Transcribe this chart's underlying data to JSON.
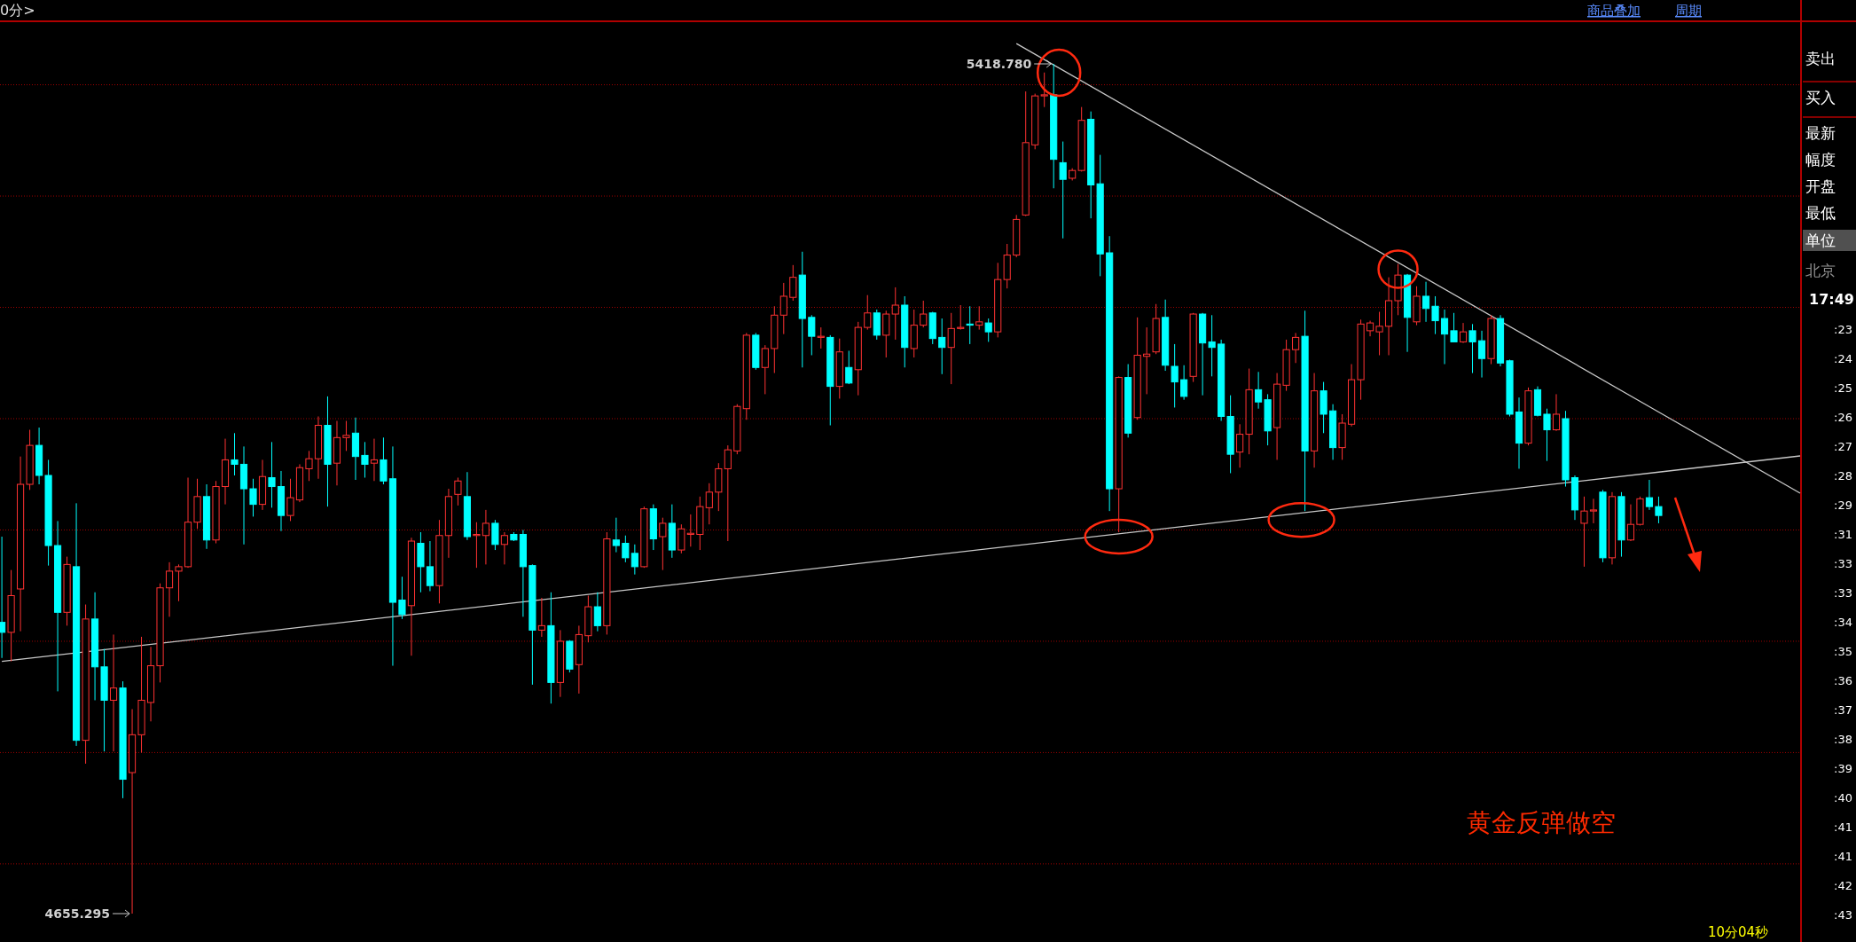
{
  "chart_data": {
    "type": "candlestick",
    "categories": [
      null,
      null,
      null,
      null,
      null,
      null,
      null,
      null,
      null,
      null,
      null,
      null,
      null,
      null,
      null,
      null,
      null,
      null,
      null,
      null,
      null,
      null,
      null,
      null,
      null,
      null,
      null,
      null,
      null,
      null,
      null,
      null,
      null,
      null,
      null,
      null,
      null,
      null,
      null,
      null,
      null,
      null,
      null,
      null,
      null,
      null,
      null,
      null,
      null,
      null,
      null,
      null,
      null,
      null,
      null,
      null,
      null,
      null,
      null,
      null,
      null,
      null,
      null,
      null,
      null,
      null,
      null,
      null,
      null,
      null,
      null,
      null,
      null,
      null,
      null,
      null,
      null,
      null,
      null,
      null,
      null,
      null,
      null,
      null,
      null,
      null,
      null,
      null,
      null,
      null,
      null,
      null,
      null,
      null,
      null,
      null,
      null,
      null,
      null,
      null,
      null,
      null,
      null,
      null,
      null,
      null,
      null,
      null,
      null,
      null,
      null,
      null,
      null,
      null,
      null,
      null,
      null,
      null,
      null,
      null,
      null,
      null,
      null,
      null,
      null,
      null,
      null,
      null,
      null,
      null,
      null,
      null,
      null,
      null,
      null,
      null,
      null,
      null,
      null,
      null,
      null,
      null,
      null,
      null,
      null,
      null,
      null,
      null,
      null,
      null,
      null,
      null,
      null,
      null,
      null,
      null,
      null,
      null,
      null,
      null,
      null,
      null,
      null,
      null,
      null,
      null,
      null,
      null,
      null,
      null,
      null,
      null,
      null,
      null,
      null,
      null,
      null,
      null,
      null
    ],
    "ohlc": [
      [
        4917,
        4994,
        4885,
        4908
      ],
      [
        4908,
        4964,
        4882,
        4941
      ],
      [
        4947,
        5066,
        4909,
        5041
      ],
      [
        5041,
        5090,
        5036,
        5076
      ],
      [
        5076,
        5092,
        5041,
        5049
      ],
      [
        5049,
        5063,
        4968,
        4986
      ],
      [
        4986,
        5008,
        4855,
        4926
      ],
      [
        4926,
        4976,
        4914,
        4969
      ],
      [
        4967,
        5024,
        4806,
        4811
      ],
      [
        4811,
        4933,
        4790,
        4920
      ],
      [
        4920,
        4944,
        4847,
        4877
      ],
      [
        4877,
        4893,
        4801,
        4847
      ],
      [
        4847,
        4906,
        4801,
        4858
      ],
      [
        4858,
        4864,
        4759,
        4776
      ],
      [
        4782,
        4839,
        4655.295,
        4816
      ],
      [
        4816,
        4904,
        4800,
        4847
      ],
      [
        4845,
        4895,
        4828,
        4878
      ],
      [
        4878,
        4952,
        4863,
        4948
      ],
      [
        4948,
        4971,
        4922,
        4963
      ],
      [
        4963,
        4969,
        4936,
        4967
      ],
      [
        4967,
        5047,
        4966,
        5007
      ],
      [
        5007,
        5046,
        5001,
        5030
      ],
      [
        5030,
        5041,
        4983,
        4991
      ],
      [
        4991,
        5044,
        4988,
        5039
      ],
      [
        5039,
        5082,
        5023,
        5063
      ],
      [
        5063,
        5087,
        5049,
        5059
      ],
      [
        5059,
        5075,
        4987,
        5037
      ],
      [
        5037,
        5046,
        5012,
        5023
      ],
      [
        5023,
        5063,
        5018,
        5048
      ],
      [
        5047,
        5079,
        5020,
        5039
      ],
      [
        5039,
        5053,
        4999,
        5013
      ],
      [
        5013,
        5046,
        5008,
        5029
      ],
      [
        5027,
        5059,
        5025,
        5056
      ],
      [
        5055,
        5071,
        5044,
        5064
      ],
      [
        5064,
        5102,
        5046,
        5094
      ],
      [
        5094,
        5120,
        5021,
        5059
      ],
      [
        5060,
        5098,
        5040,
        5083
      ],
      [
        5083,
        5098,
        5071,
        5085
      ],
      [
        5087,
        5101,
        5045,
        5066
      ],
      [
        5067,
        5079,
        5047,
        5059
      ],
      [
        5060,
        5082,
        5044,
        5063
      ],
      [
        5063,
        5083,
        5041,
        5044
      ],
      [
        5046,
        5075,
        4878,
        4935
      ],
      [
        4937,
        4958,
        4920,
        4924
      ],
      [
        4932,
        4993,
        4887,
        4990
      ],
      [
        4988,
        4998,
        4944,
        4967
      ],
      [
        4967,
        4990,
        4945,
        4950
      ],
      [
        4950,
        5009,
        4934,
        4995
      ],
      [
        4995,
        5037,
        4975,
        5030
      ],
      [
        5032,
        5047,
        5022,
        5044
      ],
      [
        5030,
        5052,
        4991,
        4994
      ],
      [
        4995,
        5007,
        4966,
        4996
      ],
      [
        4995,
        5018,
        4969,
        5006
      ],
      [
        5006,
        5009,
        4982,
        4987
      ],
      [
        4987,
        4998,
        4969,
        4995
      ],
      [
        4996,
        4998,
        4990,
        4991
      ],
      [
        4996,
        5000,
        4922,
        4967
      ],
      [
        4968,
        4969,
        4861,
        4910
      ],
      [
        4910,
        4939,
        4904,
        4914
      ],
      [
        4914,
        4944,
        4844,
        4863
      ],
      [
        4863,
        4910,
        4850,
        4900
      ],
      [
        4900,
        4901,
        4872,
        4875
      ],
      [
        4879,
        4914,
        4853,
        4906
      ],
      [
        4905,
        4941,
        4899,
        4931
      ],
      [
        4931,
        4944,
        4909,
        4914
      ],
      [
        4914,
        4998,
        4906,
        4992
      ],
      [
        4991,
        5011,
        4980,
        4986
      ],
      [
        4988,
        4995,
        4971,
        4975
      ],
      [
        4979,
        4987,
        4960,
        4967
      ],
      [
        4967,
        5021,
        4966,
        5019
      ],
      [
        5019,
        5023,
        4982,
        4992
      ],
      [
        4994,
        5011,
        4964,
        5006
      ],
      [
        5006,
        5023,
        4975,
        4982
      ],
      [
        4982,
        5005,
        4979,
        5001
      ],
      [
        4996,
        5014,
        4985,
        4997
      ],
      [
        4996,
        5030,
        4982,
        5021
      ],
      [
        5020,
        5042,
        5005,
        5034
      ],
      [
        5034,
        5060,
        5017,
        5055
      ],
      [
        5055,
        5076,
        4990,
        5072
      ],
      [
        5071,
        5113,
        5068,
        5111
      ],
      [
        5109,
        5177,
        5099,
        5175
      ],
      [
        5175,
        5177,
        5144,
        5146
      ],
      [
        5146,
        5166,
        5122,
        5163
      ],
      [
        5163,
        5201,
        5141,
        5193
      ],
      [
        5193,
        5222,
        5176,
        5210
      ],
      [
        5209,
        5238,
        5206,
        5227
      ],
      [
        5229,
        5250,
        5146,
        5190
      ],
      [
        5191,
        5193,
        5157,
        5174
      ],
      [
        5173,
        5182,
        5163,
        5174
      ],
      [
        5173,
        5175,
        5094,
        5129
      ],
      [
        5129,
        5172,
        5118,
        5160
      ],
      [
        5146,
        5161,
        5131,
        5132
      ],
      [
        5144,
        5187,
        5121,
        5182
      ],
      [
        5182,
        5211,
        5180,
        5195
      ],
      [
        5195,
        5198,
        5171,
        5175
      ],
      [
        5175,
        5197,
        5155,
        5194
      ],
      [
        5194,
        5218,
        5171,
        5202
      ],
      [
        5202,
        5210,
        5146,
        5164
      ],
      [
        5163,
        5198,
        5155,
        5184
      ],
      [
        5184,
        5206,
        5182,
        5194
      ],
      [
        5195,
        5196,
        5167,
        5172
      ],
      [
        5173,
        5190,
        5140,
        5164
      ],
      [
        5164,
        5195,
        5131,
        5181
      ],
      [
        5181,
        5202,
        5180,
        5182
      ],
      [
        5185,
        5201,
        5167,
        5184
      ],
      [
        5184,
        5201,
        5180,
        5187
      ],
      [
        5186,
        5190,
        5169,
        5178
      ],
      [
        5178,
        5240,
        5173,
        5225
      ],
      [
        5225,
        5257,
        5217,
        5247
      ],
      [
        5247,
        5283,
        5245,
        5279
      ],
      [
        5283,
        5394,
        5282,
        5348
      ],
      [
        5346,
        5392,
        5342,
        5390
      ],
      [
        5390,
        5411,
        5380,
        5391
      ],
      [
        5391,
        5418.78,
        5307,
        5333
      ],
      [
        5330,
        5349,
        5262,
        5315
      ],
      [
        5316,
        5325,
        5314,
        5323
      ],
      [
        5323,
        5380,
        5322,
        5368
      ],
      [
        5369,
        5376,
        5280,
        5310
      ],
      [
        5311,
        5337,
        5228,
        5248
      ],
      [
        5249,
        5264,
        5017,
        5037
      ],
      [
        5037,
        5138,
        4998,
        5137
      ],
      [
        5137,
        5149,
        5083,
        5087
      ],
      [
        5101,
        5191,
        5099,
        5157
      ],
      [
        5156,
        5182,
        5122,
        5158
      ],
      [
        5160,
        5203,
        5158,
        5190
      ],
      [
        5191,
        5207,
        5143,
        5148
      ],
      [
        5147,
        5167,
        5110,
        5133
      ],
      [
        5135,
        5148,
        5117,
        5120
      ],
      [
        5138,
        5195,
        5133,
        5194
      ],
      [
        5194,
        5195,
        5121,
        5168
      ],
      [
        5169,
        5193,
        5138,
        5164
      ],
      [
        5167,
        5171,
        5098,
        5102
      ],
      [
        5102,
        5121,
        5051,
        5068
      ],
      [
        5070,
        5095,
        5056,
        5086
      ],
      [
        5086,
        5145,
        5068,
        5126
      ],
      [
        5126,
        5142,
        5109,
        5115
      ],
      [
        5117,
        5122,
        5076,
        5089
      ],
      [
        5092,
        5141,
        5063,
        5131
      ],
      [
        5130,
        5171,
        5125,
        5162
      ],
      [
        5162,
        5177,
        5150,
        5173
      ],
      [
        5174,
        5197,
        5017,
        5071
      ],
      [
        5071,
        5141,
        5056,
        5125
      ],
      [
        5125,
        5133,
        5087,
        5104
      ],
      [
        5107,
        5113,
        5063,
        5074
      ],
      [
        5074,
        5104,
        5063,
        5096
      ],
      [
        5095,
        5149,
        5093,
        5135
      ],
      [
        5135,
        5189,
        5117,
        5185
      ],
      [
        5179,
        5188,
        5174,
        5186
      ],
      [
        5178,
        5196,
        5157,
        5183
      ],
      [
        5183,
        5227,
        5157,
        5206
      ],
      [
        5206,
        5239,
        5193,
        5229
      ],
      [
        5229,
        5230,
        5160,
        5191
      ],
      [
        5187,
        5219,
        5184,
        5210
      ],
      [
        5210,
        5223,
        5187,
        5199
      ],
      [
        5201,
        5210,
        5176,
        5188
      ],
      [
        5190,
        5198,
        5149,
        5176
      ],
      [
        5179,
        5195,
        5169,
        5169
      ],
      [
        5169,
        5186,
        5168,
        5178
      ],
      [
        5179,
        5185,
        5141,
        5169
      ],
      [
        5170,
        5179,
        5137,
        5154
      ],
      [
        5154,
        5193,
        5149,
        5190
      ],
      [
        5190,
        5193,
        5147,
        5150
      ],
      [
        5152,
        5153,
        5102,
        5104
      ],
      [
        5106,
        5119,
        5055,
        5078
      ],
      [
        5078,
        5128,
        5076,
        5125
      ],
      [
        5126,
        5129,
        5102,
        5103
      ],
      [
        5104,
        5109,
        5062,
        5090
      ],
      [
        5090,
        5122,
        5089,
        5104
      ],
      [
        5100,
        5107,
        5039,
        5045
      ],
      [
        5047,
        5049,
        5009,
        5018
      ],
      [
        5006,
        5030,
        4967,
        5017
      ],
      [
        5017,
        5028,
        5006,
        5018
      ],
      [
        5034,
        5036,
        4971,
        4975
      ],
      [
        4975,
        5034,
        4969,
        5030
      ],
      [
        5030,
        5034,
        4976,
        4991
      ],
      [
        4991,
        5023,
        4990,
        5005
      ],
      [
        5005,
        5030,
        5004,
        5028
      ],
      [
        5029,
        5045,
        5018,
        5021
      ],
      [
        5021,
        5030,
        5006,
        5013
      ]
    ],
    "series": [
      {
        "type": "line",
        "color": "#c8c8c8",
        "values": [
          null,
          null,
          null,
          null,
          null,
          null,
          null,
          null,
          null,
          null,
          null,
          null,
          null,
          null,
          null,
          null,
          null,
          null,
          null,
          null,
          null,
          null,
          null,
          null,
          null,
          null,
          null,
          null,
          null,
          null,
          null,
          null,
          null,
          null,
          null,
          null,
          null,
          null,
          null,
          null,
          null,
          null,
          null,
          null,
          null,
          null,
          null,
          null,
          null,
          null,
          null,
          null,
          null,
          null,
          null,
          null,
          null,
          null,
          null,
          null,
          null,
          null,
          null,
          null,
          null,
          null,
          null,
          null,
          null,
          null,
          null,
          null,
          null,
          null,
          null,
          null,
          null,
          null,
          null,
          null,
          null,
          null,
          null,
          null,
          null,
          null,
          null,
          null,
          null,
          null,
          null,
          null,
          null,
          null,
          null,
          null,
          null,
          null,
          null,
          null,
          null,
          null,
          null,
          null,
          null,
          null,
          null,
          null,
          null,
          5437,
          null,
          null,
          null,
          null,
          null,
          null,
          null,
          null,
          null,
          null,
          null,
          null,
          null,
          null,
          null,
          null,
          null,
          null,
          null,
          null,
          null,
          null,
          null,
          null,
          null,
          null,
          null,
          null,
          null,
          null,
          null,
          null,
          null,
          null,
          null,
          null,
          null,
          null,
          null,
          null,
          null,
          null,
          null,
          null,
          null,
          null,
          null,
          null,
          null,
          null,
          null,
          null,
          null,
          null,
          null,
          null,
          null,
          null,
          null,
          null,
          null,
          null,
          null,
          null,
          null,
          null,
          null,
          null,
          5106
        ]
      },
      {
        "type": "line",
        "color": "#c8c8c8",
        "values": [
          4882,
          null,
          null,
          null,
          null,
          null,
          null,
          null,
          null,
          null,
          null,
          null,
          null,
          null,
          null,
          null,
          null,
          null,
          null,
          null,
          null,
          null,
          null,
          null,
          null,
          null,
          null,
          null,
          null,
          null,
          null,
          null,
          null,
          null,
          null,
          null,
          null,
          null,
          null,
          null,
          null,
          null,
          null,
          null,
          null,
          null,
          null,
          null,
          null,
          null,
          null,
          null,
          null,
          null,
          null,
          null,
          null,
          null,
          null,
          null,
          null,
          null,
          null,
          null,
          null,
          null,
          null,
          null,
          null,
          null,
          null,
          null,
          null,
          null,
          null,
          null,
          null,
          null,
          null,
          null,
          null,
          null,
          null,
          null,
          null,
          null,
          null,
          null,
          null,
          null,
          null,
          null,
          null,
          null,
          null,
          null,
          null,
          null,
          null,
          null,
          null,
          null,
          null,
          null,
          null,
          null,
          null,
          null,
          null,
          null,
          null,
          null,
          null,
          null,
          null,
          null,
          null,
          null,
          null,
          null,
          null,
          null,
          null,
          null,
          null,
          null,
          null,
          null,
          null,
          null,
          null,
          null,
          null,
          null,
          null,
          null,
          null,
          null,
          null,
          null,
          null,
          null,
          null,
          null,
          null,
          null,
          null,
          null,
          null,
          null,
          null,
          null,
          null,
          null,
          null,
          null,
          null,
          null,
          null,
          null,
          null,
          null,
          null,
          null,
          null,
          null,
          null,
          null,
          null,
          null,
          null,
          null,
          null,
          null,
          null,
          null,
          null,
          null,
          5052
        ]
      }
    ],
    "yticks": [
      {
        "value": 4700,
        "label": null
      },
      {
        "value": 4800,
        "label": null
      },
      {
        "value": 4900,
        "label": null
      },
      {
        "value": 5000,
        "label": null
      },
      {
        "value": 5100,
        "label": null
      },
      {
        "value": 5200,
        "label": null
      },
      {
        "value": 5300,
        "label": null
      },
      {
        "value": 5400,
        "label": null
      }
    ],
    "grid": "y",
    "annotations": [
      "5418.780",
      "4655.295",
      "黄金反弹做空",
      "0分>",
      "商品叠加",
      "周期",
      "10分04秒",
      "卖出",
      "买入",
      "最新",
      "幅度",
      "开盘",
      "最低",
      "单位",
      "北京",
      "17:49",
      ":23",
      ":24",
      ":25",
      ":26",
      ":27",
      ":28",
      ":29",
      ":31",
      ":33",
      ":33",
      ":34",
      ":35",
      ":36",
      ":37",
      ":38",
      ":39",
      ":40",
      ":41",
      ":41",
      ":42",
      ":43"
    ]
  }
}
